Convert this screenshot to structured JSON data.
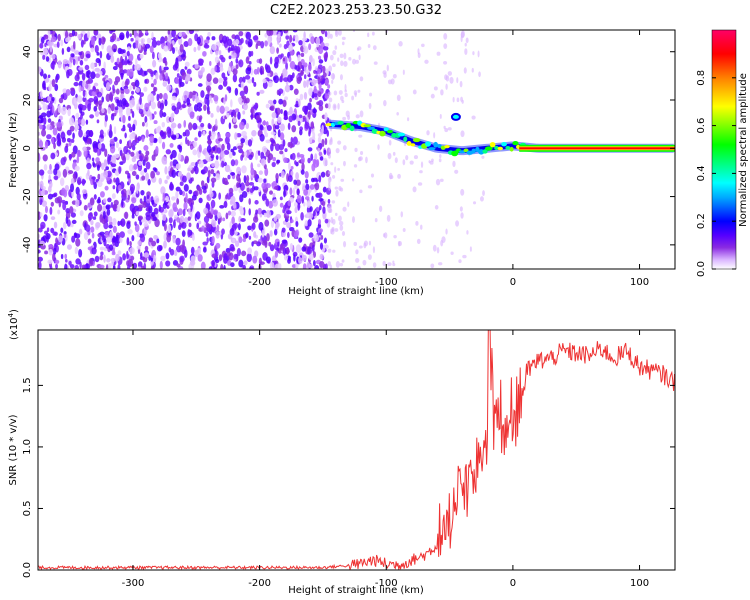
{
  "title": "C2E2.2023.253.23.50.G32",
  "chart_data": [
    {
      "type": "heatmap",
      "xlabel": "Height of straight line (km)",
      "ylabel": "Frequency (Hz)",
      "xlim": [
        -375,
        128
      ],
      "ylim": [
        -50,
        49
      ],
      "xticks": [
        -300,
        -200,
        -100,
        0,
        100
      ],
      "yticks": [
        -40,
        -20,
        0,
        20,
        40
      ],
      "colorbar": {
        "label": "Normalized spectral amplitude",
        "range": [
          0,
          1
        ],
        "ticks": [
          "0.0",
          "0.2",
          "0.4",
          "0.6",
          "0.8"
        ],
        "colors": [
          "#ffffff",
          "#d9b3ff",
          "#8a2be2",
          "#5500ff",
          "#0000ff",
          "#00aaff",
          "#00ffff",
          "#00ff80",
          "#00ff00",
          "#80ff00",
          "#ffff00",
          "#ff8000",
          "#ff0000",
          "#ff0066"
        ]
      },
      "features": {
        "noise_region_x": [
          -375,
          -145
        ],
        "sparse_region_x": [
          -145,
          128
        ],
        "signal_track": [
          {
            "x": -145,
            "y": 10
          },
          {
            "x": -120,
            "y": 9
          },
          {
            "x": -100,
            "y": 7
          },
          {
            "x": -80,
            "y": 3
          },
          {
            "x": -60,
            "y": 0
          },
          {
            "x": -40,
            "y": -1
          },
          {
            "x": -20,
            "y": 0
          },
          {
            "x": 0,
            "y": 1
          },
          {
            "x": 20,
            "y": 0
          },
          {
            "x": 128,
            "y": 0
          }
        ]
      }
    },
    {
      "type": "line",
      "xlabel": "Height of straight line (km)",
      "ylabel": "SNR (10 * v/v)",
      "scale_label": "(x10",
      "scale_exp": "4",
      "scale_close": ")",
      "xlim": [
        -375,
        128
      ],
      "ylim": [
        0,
        1.95
      ],
      "xticks": [
        -300,
        -200,
        -100,
        0,
        100
      ],
      "yticks": [
        "0.0",
        "0.5",
        "1.0",
        "1.5"
      ],
      "line_color": "#ee3333",
      "series": [
        {
          "x": [
            -375,
            -350,
            -300,
            -250,
            -200,
            -150,
            -125,
            -110,
            -100,
            -90,
            -80,
            -70,
            -60,
            -50,
            -45,
            -40,
            -35,
            -30,
            -25,
            -20,
            -19,
            -15,
            -10,
            -5,
            0,
            5,
            10,
            20,
            30,
            40,
            50,
            60,
            70,
            80,
            90,
            100,
            110,
            120,
            128
          ],
          "values": [
            0.02,
            0.02,
            0.02,
            0.02,
            0.02,
            0.02,
            0.04,
            0.08,
            0.05,
            0.04,
            0.08,
            0.12,
            0.2,
            0.35,
            0.5,
            0.65,
            0.8,
            0.7,
            1.0,
            1.1,
            1.95,
            1.2,
            1.3,
            1.15,
            1.25,
            1.45,
            1.6,
            1.7,
            1.72,
            1.78,
            1.76,
            1.74,
            1.8,
            1.72,
            1.78,
            1.65,
            1.62,
            1.58,
            1.52
          ]
        }
      ]
    }
  ]
}
